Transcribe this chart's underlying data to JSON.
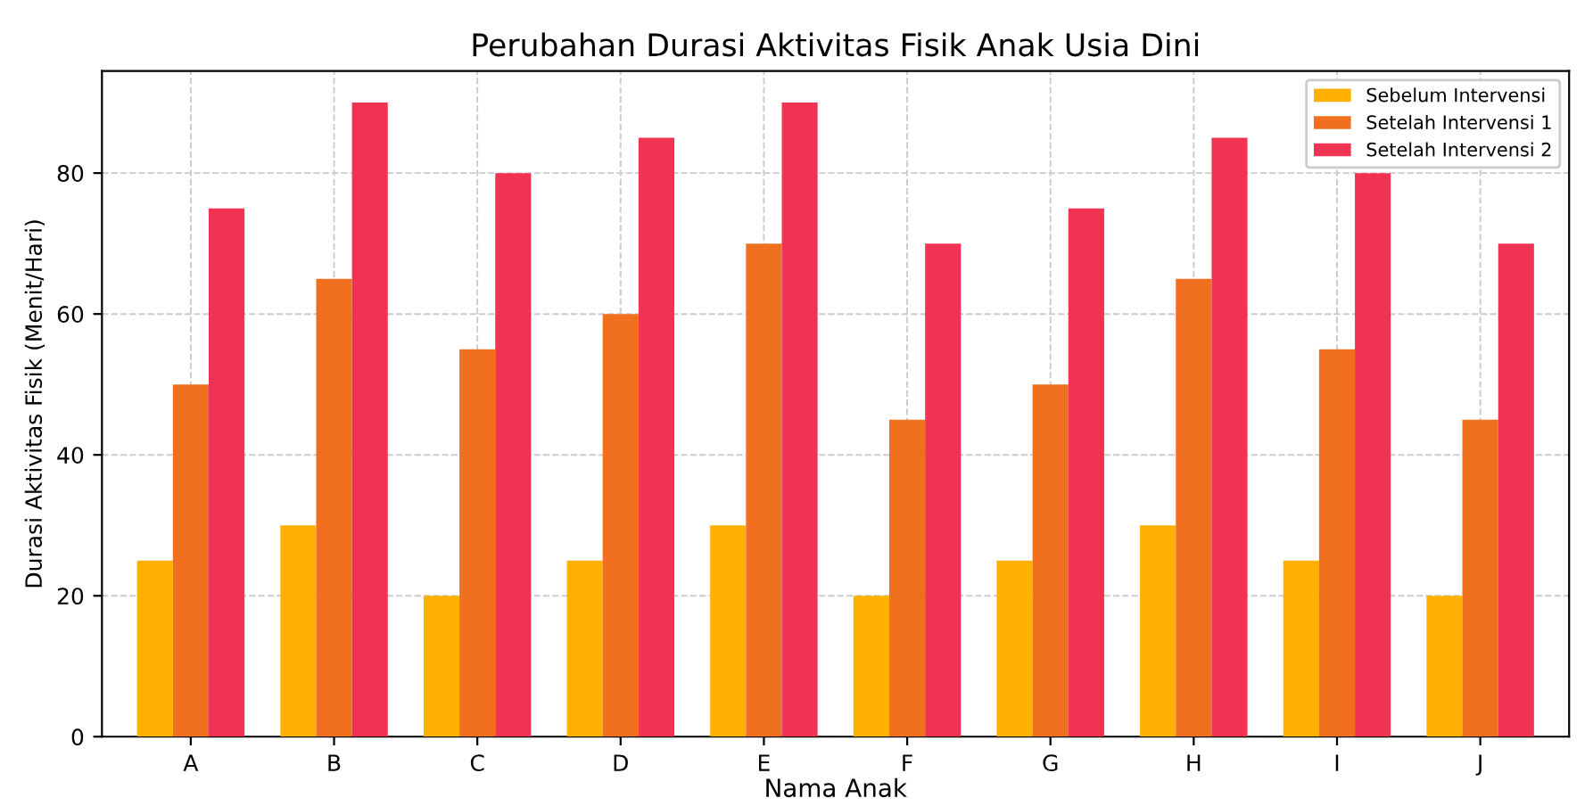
{
  "chart_data": {
    "type": "bar",
    "title": "Perubahan Durasi Aktivitas Fisik Anak Usia Dini",
    "xlabel": "Nama Anak",
    "ylabel": "Durasi Aktivitas Fisik (Menit/Hari)",
    "categories": [
      "A",
      "B",
      "C",
      "D",
      "E",
      "F",
      "G",
      "H",
      "I",
      "J"
    ],
    "series": [
      {
        "name": "Sebelum Intervensi",
        "color": "#ffb000",
        "values": [
          25,
          30,
          20,
          25,
          30,
          20,
          25,
          30,
          25,
          20
        ]
      },
      {
        "name": "Setelah Intervensi 1",
        "color": "#f07020",
        "values": [
          50,
          65,
          55,
          60,
          70,
          45,
          50,
          65,
          55,
          45
        ]
      },
      {
        "name": "Setelah Intervensi 2",
        "color": "#f03352",
        "values": [
          75,
          90,
          80,
          85,
          90,
          70,
          75,
          85,
          80,
          70
        ]
      }
    ],
    "ylim": [
      0,
      94.5
    ],
    "yticks": [
      0,
      20,
      40,
      60,
      80
    ],
    "grid": true,
    "legend": "top right"
  }
}
